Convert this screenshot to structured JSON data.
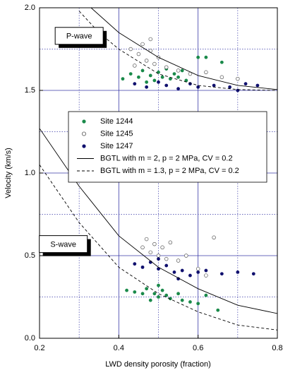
{
  "chart_data": {
    "type": "scatter",
    "x_label": "LWD density porosity (fraction)",
    "y_label": "Velocity (km/s)",
    "xlim": [
      0.2,
      0.8
    ],
    "ylim": [
      0,
      2.0
    ],
    "xticks": [
      0.2,
      0.4,
      0.6,
      0.8
    ],
    "yticks": [
      {
        "value": 0,
        "label": "0.0"
      },
      0.5,
      {
        "value": 1,
        "label": "1.0"
      },
      1.5,
      {
        "value": 2,
        "label": "2.0"
      }
    ],
    "x_minor_grid": [
      0.3,
      0.5,
      0.7
    ],
    "y_minor_grid": [
      0.25,
      0.75,
      1.25,
      1.75
    ],
    "grid": true,
    "grid_color": "#3a3aa8",
    "annotations": [
      {
        "text": "P-wave",
        "x": 0.3,
        "y": 1.83
      },
      {
        "text": "S-wave",
        "x": 0.26,
        "y": 0.57
      }
    ],
    "series": [
      {
        "name": "Site 1244",
        "kind": "scatter",
        "marker": "filled",
        "color": "#1a8a4a",
        "x": [
          0.41,
          0.43,
          0.45,
          0.46,
          0.48,
          0.49,
          0.5,
          0.51,
          0.52,
          0.53,
          0.54,
          0.55,
          0.57,
          0.58,
          0.5,
          0.6,
          0.62,
          0.66,
          0.47,
          0.56,
          0.42,
          0.44,
          0.46,
          0.47,
          0.49,
          0.5,
          0.51,
          0.52,
          0.53,
          0.55,
          0.56,
          0.58,
          0.6,
          0.62,
          0.65,
          0.5,
          0.48
        ],
        "values": [
          1.57,
          1.6,
          1.58,
          1.62,
          1.59,
          1.56,
          1.61,
          1.58,
          1.63,
          1.57,
          1.6,
          1.58,
          1.56,
          1.6,
          1.7,
          1.7,
          1.7,
          1.67,
          1.55,
          1.62,
          0.29,
          0.28,
          0.27,
          0.3,
          0.27,
          0.25,
          0.29,
          0.26,
          0.24,
          0.27,
          0.23,
          0.22,
          0.21,
          0.26,
          0.17,
          0.32,
          0.23
        ]
      },
      {
        "name": "Site 1245",
        "kind": "scatter",
        "marker": "open",
        "color": "#555555",
        "x": [
          0.43,
          0.45,
          0.46,
          0.47,
          0.48,
          0.49,
          0.5,
          0.44,
          0.52,
          0.55,
          0.58,
          0.62,
          0.66,
          0.7,
          0.48,
          0.46,
          0.47,
          0.48,
          0.49,
          0.5,
          0.51,
          0.52,
          0.53,
          0.55,
          0.57,
          0.6,
          0.64,
          0.62
        ],
        "values": [
          1.75,
          1.72,
          1.78,
          1.68,
          1.74,
          1.66,
          1.7,
          1.65,
          1.64,
          1.62,
          1.6,
          1.61,
          1.58,
          1.57,
          1.81,
          0.55,
          0.6,
          0.52,
          0.57,
          0.5,
          0.55,
          0.48,
          0.58,
          0.47,
          0.5,
          0.42,
          0.61,
          0.38
        ]
      },
      {
        "name": "Site 1247",
        "kind": "scatter",
        "marker": "filled",
        "color": "#10106e",
        "x": [
          0.44,
          0.47,
          0.5,
          0.52,
          0.55,
          0.58,
          0.6,
          0.64,
          0.68,
          0.72,
          0.75,
          0.7,
          0.44,
          0.46,
          0.48,
          0.5,
          0.52,
          0.54,
          0.56,
          0.58,
          0.6,
          0.62,
          0.66,
          0.7,
          0.74,
          0.5,
          0.55
        ],
        "values": [
          1.54,
          1.52,
          1.55,
          1.53,
          1.51,
          1.54,
          1.52,
          1.53,
          1.52,
          1.54,
          1.53,
          1.5,
          0.45,
          0.43,
          0.46,
          0.42,
          0.44,
          0.4,
          0.41,
          0.38,
          0.4,
          0.41,
          0.39,
          0.4,
          0.39,
          0.48,
          0.36
        ]
      },
      {
        "name": "BGTL with m = 2, p = 2 MPa, CV = 0.2",
        "kind": "line",
        "dash": "solid",
        "color": "#000000",
        "x": [
          0.33,
          0.4,
          0.5,
          0.6,
          0.7,
          0.8,
          null,
          0.2,
          0.3,
          0.4,
          0.5,
          0.6,
          0.7,
          0.8
        ],
        "values": [
          2.0,
          1.85,
          1.7,
          1.59,
          1.53,
          1.505,
          null,
          1.27,
          0.92,
          0.62,
          0.43,
          0.3,
          0.2,
          0.15
        ]
      },
      {
        "name": "BGTL with m = 1.3, p = 2 MPa, CV = 0.2",
        "kind": "line",
        "dash": "dashed",
        "color": "#000000",
        "x": [
          0.3,
          0.35,
          0.4,
          0.5,
          0.6,
          0.7,
          0.8,
          null,
          0.2,
          0.3,
          0.4,
          0.5,
          0.6,
          0.7,
          0.8
        ],
        "values": [
          1.98,
          1.85,
          1.75,
          1.6,
          1.53,
          1.505,
          1.5,
          null,
          1.05,
          0.7,
          0.43,
          0.27,
          0.16,
          0.08,
          0.05
        ]
      }
    ]
  }
}
